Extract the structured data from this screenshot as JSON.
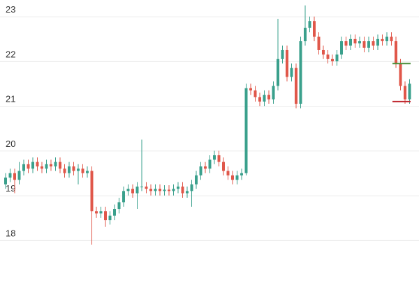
{
  "chart_data": {
    "type": "candlestick",
    "ylim": [
      17.15,
      23.22
    ],
    "yticks": [
      18,
      19,
      20,
      21,
      22,
      23
    ],
    "grid": true,
    "up_color": "#3aa08c",
    "down_color": "#e0574a",
    "open": [
      19.1,
      19.25,
      19.35,
      19.2,
      19.4,
      19.55,
      19.45,
      19.6,
      19.5,
      19.45,
      19.55,
      19.5,
      19.6,
      19.45,
      19.35,
      19.5,
      19.4,
      19.45,
      19.35,
      19.4,
      18.5,
      18.45,
      18.5,
      18.3,
      18.4,
      18.55,
      18.7,
      18.95,
      19.0,
      18.9,
      19.05,
      19.05,
      19.0,
      18.95,
      19.0,
      18.95,
      18.98,
      18.95,
      19.0,
      19.05,
      18.9,
      18.95,
      19.1,
      19.3,
      19.5,
      19.45,
      19.65,
      19.75,
      19.6,
      19.4,
      19.3,
      19.2,
      19.3,
      19.35,
      21.25,
      21.2,
      21.05,
      20.95,
      21.1,
      21.0,
      21.3,
      21.9,
      22.1,
      21.5,
      21.7,
      20.9,
      22.3,
      22.6,
      22.75,
      22.4,
      22.1,
      22.0,
      21.9,
      21.85,
      22.0,
      22.3,
      22.2,
      22.35,
      22.25,
      22.3,
      22.15,
      22.3,
      22.2,
      22.35,
      22.3,
      22.4,
      22.3,
      21.8,
      21.3,
      21.0
    ],
    "high": [
      19.35,
      19.45,
      19.45,
      19.6,
      19.65,
      19.65,
      19.7,
      19.7,
      19.6,
      19.65,
      19.65,
      19.7,
      19.7,
      19.55,
      19.6,
      19.6,
      19.55,
      19.55,
      19.5,
      19.5,
      18.6,
      18.6,
      18.6,
      18.5,
      18.65,
      18.8,
      19.05,
      19.1,
      19.1,
      19.15,
      20.1,
      19.15,
      19.1,
      19.1,
      19.1,
      19.08,
      19.08,
      19.1,
      19.15,
      19.15,
      19.05,
      19.2,
      19.4,
      19.6,
      19.6,
      19.75,
      19.85,
      19.85,
      19.7,
      19.5,
      19.4,
      19.4,
      19.45,
      21.35,
      21.35,
      21.3,
      21.15,
      21.2,
      21.2,
      21.4,
      22.8,
      22.2,
      22.2,
      21.8,
      21.8,
      22.4,
      23.1,
      22.85,
      22.85,
      22.5,
      22.2,
      22.1,
      22.0,
      22.1,
      22.4,
      22.4,
      22.45,
      22.45,
      22.4,
      22.4,
      22.4,
      22.4,
      22.45,
      22.45,
      22.5,
      22.5,
      22.4,
      21.9,
      21.4,
      21.45
    ],
    "low": [
      19.0,
      19.15,
      18.9,
      19.1,
      19.3,
      19.35,
      19.35,
      19.4,
      19.35,
      19.35,
      19.4,
      19.4,
      19.35,
      19.25,
      19.25,
      19.3,
      19.1,
      19.25,
      19.25,
      17.75,
      18.35,
      18.35,
      18.15,
      18.2,
      18.3,
      18.45,
      18.6,
      18.85,
      18.8,
      18.55,
      18.95,
      18.9,
      18.85,
      18.85,
      18.85,
      18.85,
      18.85,
      18.85,
      18.9,
      18.8,
      18.8,
      18.6,
      19.0,
      19.2,
      19.35,
      19.35,
      19.55,
      19.5,
      19.3,
      19.2,
      19.1,
      19.1,
      19.2,
      19.3,
      21.1,
      20.95,
      20.85,
      20.85,
      20.9,
      20.9,
      21.2,
      21.8,
      21.4,
      21.4,
      20.8,
      20.8,
      22.2,
      22.5,
      22.3,
      22.0,
      21.9,
      21.8,
      21.75,
      21.75,
      21.9,
      22.1,
      22.1,
      22.15,
      22.15,
      22.05,
      22.05,
      22.1,
      22.1,
      22.2,
      22.2,
      22.2,
      21.7,
      21.2,
      20.9,
      20.9
    ],
    "close": [
      19.25,
      19.35,
      19.2,
      19.4,
      19.55,
      19.45,
      19.6,
      19.5,
      19.45,
      19.55,
      19.5,
      19.6,
      19.45,
      19.35,
      19.5,
      19.4,
      19.45,
      19.35,
      19.4,
      18.5,
      18.45,
      18.5,
      18.3,
      18.4,
      18.55,
      18.7,
      18.95,
      19.0,
      18.9,
      19.05,
      19.05,
      19.0,
      18.95,
      19.0,
      18.95,
      18.98,
      18.95,
      19.0,
      19.05,
      18.9,
      18.95,
      19.1,
      19.3,
      19.5,
      19.45,
      19.65,
      19.75,
      19.6,
      19.4,
      19.3,
      19.2,
      19.3,
      19.35,
      21.25,
      21.2,
      21.05,
      20.95,
      21.1,
      21.0,
      21.3,
      21.9,
      22.1,
      21.5,
      21.7,
      20.9,
      22.3,
      22.6,
      22.75,
      22.4,
      22.1,
      22.0,
      21.9,
      21.85,
      22.0,
      22.3,
      22.2,
      22.35,
      22.25,
      22.3,
      22.15,
      22.3,
      22.2,
      22.35,
      22.3,
      22.4,
      22.3,
      21.8,
      21.3,
      21.0,
      21.35
    ],
    "price_lines": [
      {
        "value": 21.8,
        "color": "#4a8f3a"
      },
      {
        "value": 20.95,
        "color": "#c0282f"
      }
    ]
  }
}
